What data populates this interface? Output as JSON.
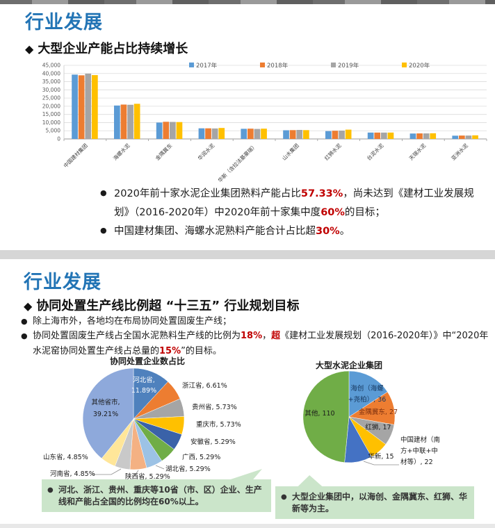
{
  "ui": {
    "dot": "●",
    "diamond": "◆"
  },
  "section1": {
    "title": "行业发展",
    "subtitle": "大型企业产能占比持续增长",
    "bullets": [
      [
        {
          "t": "2020年前十家水泥企业集团熟料产能占比"
        },
        {
          "t": "57.33%",
          "red": true
        },
        {
          "t": "，尚未达到《建材工业发展规划》（2016-2020年）中2020年前十家集中度"
        },
        {
          "t": "60%",
          "red": true
        },
        {
          "t": "的目标；"
        }
      ],
      [
        {
          "t": "中国建材集团、海螺水泥熟料产能合计占比超"
        },
        {
          "t": "30%",
          "red": true
        },
        {
          "t": "。"
        }
      ]
    ]
  },
  "section2": {
    "title": "行业发展",
    "subtitle": "协同处置生产线比例超 “十三五” 行业规划目标",
    "bullets": [
      [
        {
          "t": "除上海市外，各地均在布局协同处置固废生产线；"
        }
      ],
      [
        {
          "t": "协同处置固废生产线占全国水泥熟料生产线的比例为"
        },
        {
          "t": "18%",
          "red": true
        },
        {
          "t": "，"
        },
        {
          "t": "超",
          "red": true,
          "bold": true
        },
        {
          "t": "《建材工业发展规划（2016-2020年）》中“2020年水泥窑协同处置生产线占总量的"
        },
        {
          "t": "15%",
          "red": true
        },
        {
          "t": "”的目标。"
        }
      ]
    ]
  },
  "callouts": {
    "left": "河北、浙江、贵州、重庆等10省（市、区）企业、生产线和产能占全国的比例均在60%以上。",
    "right": "大型企业集团中，以海创、金隅冀东、红狮、华新等为主。"
  },
  "chart_data": [
    {
      "type": "bar",
      "title": "",
      "categories": [
        "中国建材集团",
        "海螺水泥",
        "金隅冀东",
        "华润水泥",
        "华新（含拉法基豪瑞）",
        "山水集团",
        "红狮水泥",
        "台泥水泥",
        "天瑞水泥",
        "亚洲水泥"
      ],
      "series": [
        {
          "name": "2017年",
          "color": "#5B9BD5",
          "values": [
            39300,
            20400,
            10000,
            6500,
            6200,
            5300,
            4800,
            3900,
            3300,
            2000
          ]
        },
        {
          "name": "2018年",
          "color": "#ED7D31",
          "values": [
            38900,
            21000,
            10500,
            6500,
            6300,
            5400,
            5000,
            3900,
            3400,
            2100
          ]
        },
        {
          "name": "2019年",
          "color": "#A5A5A5",
          "values": [
            39900,
            20900,
            10400,
            6400,
            6100,
            5500,
            5100,
            3900,
            3400,
            2100
          ]
        },
        {
          "name": "2020年",
          "color": "#FFC000",
          "values": [
            39000,
            21500,
            10300,
            6700,
            6300,
            5400,
            5700,
            3900,
            3500,
            2200
          ]
        }
      ],
      "ylim": [
        0,
        45000
      ],
      "ytick_step": 5000,
      "grid": true,
      "legend_position": "top"
    },
    {
      "type": "pie",
      "title": "协同处置企业数占比",
      "slices": [
        {
          "label": "河北省",
          "value": 11.89,
          "display": "11.89%",
          "color": "#4F81BD"
        },
        {
          "label": "浙江省",
          "value": 6.61,
          "display": "6.61%",
          "color": "#ED7D31"
        },
        {
          "label": "贵州省",
          "value": 5.73,
          "display": "5.73%",
          "color": "#A5A5A5"
        },
        {
          "label": "重庆市",
          "value": 5.73,
          "display": "5.73%",
          "color": "#FFC000"
        },
        {
          "label": "安徽省",
          "value": 5.29,
          "display": "5.29%",
          "color": "#3A62A8"
        },
        {
          "label": "广西",
          "value": 5.29,
          "display": "5.29%",
          "color": "#70AD47"
        },
        {
          "label": "湖北省",
          "value": 5.29,
          "display": "5.29%",
          "color": "#9CC2E5"
        },
        {
          "label": "陕西省",
          "value": 5.29,
          "display": "5.29%",
          "color": "#F4B183"
        },
        {
          "label": "河南省",
          "value": 4.85,
          "display": "4.85%",
          "color": "#C9C9C9"
        },
        {
          "label": "山东省",
          "value": 4.85,
          "display": "4.85%",
          "color": "#FFE699"
        },
        {
          "label": "其他省市",
          "value": 39.21,
          "display": "39.21%",
          "color": "#8EA9DB"
        }
      ]
    },
    {
      "type": "pie",
      "title": "大型水泥企业集团",
      "slices": [
        {
          "label": "海创（海螺+尧柏）",
          "value": 36,
          "display": "36",
          "color": "#5B9BD5"
        },
        {
          "label": "金隅冀东",
          "value": 27,
          "display": "27",
          "color": "#ED7D31"
        },
        {
          "label": "红狮",
          "value": 17,
          "display": "17",
          "color": "#A5A5A5"
        },
        {
          "label": "华新",
          "value": 15,
          "display": "15",
          "color": "#FFC000"
        },
        {
          "label": "中国建材（南方+中联+中材等）",
          "value": 22,
          "display": "22",
          "color": "#4472C4"
        },
        {
          "label": "其他",
          "value": 110,
          "display": "110",
          "color": "#70AD47"
        }
      ]
    }
  ]
}
